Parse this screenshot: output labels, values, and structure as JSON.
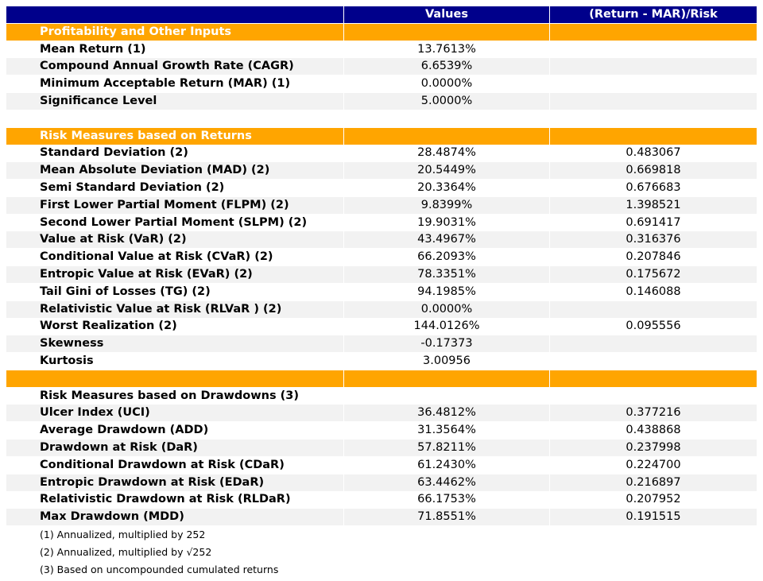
{
  "table": {
    "header": [
      "Values",
      "(Return - MAR)/Risk"
    ],
    "sections": [
      {
        "title": "Profitability and Other Inputs",
        "style": "band",
        "rows": [
          [
            "Mean Return (1)",
            "13.7613%"
          ],
          [
            "Compound Annual Growth Rate (CAGR)",
            "6.6539%"
          ],
          [
            "Minimum Acceptable Return (MAR) (1)",
            "0.0000%"
          ],
          [
            "Significance Level",
            "5.0000%"
          ]
        ]
      },
      {
        "title": "Risk Measures based on Returns",
        "style": "band",
        "rows": [
          [
            "Standard Deviation (2)",
            "28.4874%",
            "0.483067"
          ],
          [
            "Mean Absolute Deviation (MAD) (2)",
            "20.5449%",
            "0.669818"
          ],
          [
            "Semi Standard Deviation (2)",
            "20.3364%",
            "0.676683"
          ],
          [
            "First Lower Partial Moment (FLPM) (2)",
            "9.8399%",
            "1.398521"
          ],
          [
            "Second Lower Partial Moment (SLPM) (2)",
            "19.9031%",
            "0.691417"
          ],
          [
            "Value at Risk (VaR) (2)",
            "43.4967%",
            "0.316376"
          ],
          [
            "Conditional Value at Risk (CVaR) (2)",
            "66.2093%",
            "0.207846"
          ],
          [
            "Entropic Value at Risk (EVaR) (2)",
            "78.3351%",
            "0.175672"
          ],
          [
            "Tail Gini of Losses (TG) (2)",
            "94.1985%",
            "0.146088"
          ],
          [
            "Relativistic Value at Risk (RLVaR ) (2)",
            "0.0000%"
          ],
          [
            "Worst Realization (2)",
            "144.0126%",
            "0.095556"
          ],
          [
            "Skewness",
            "-0.17373"
          ],
          [
            "Kurtosis",
            "3.00956"
          ]
        ]
      },
      {
        "title": "Risk Measures based on Drawdowns (3)",
        "style": "plain",
        "rows": [
          [
            "Ulcer Index (UCI)",
            "36.4812%",
            "0.377216"
          ],
          [
            "Average Drawdown (ADD)",
            "31.3564%",
            "0.438868"
          ],
          [
            "Drawdown at Risk (DaR)",
            "57.8211%",
            "0.237998"
          ],
          [
            "Conditional Drawdown at Risk (CDaR)",
            "61.2430%",
            "0.224700"
          ],
          [
            "Entropic Drawdown at Risk (EDaR)",
            "63.4462%",
            "0.216897"
          ],
          [
            "Relativistic Drawdown at Risk (RLDaR)",
            "66.1753%",
            "0.207952"
          ],
          [
            "Max Drawdown (MDD)",
            "71.8551%",
            "0.191515"
          ]
        ]
      }
    ],
    "notes": [
      "(1) Annualized, multiplied by 252",
      "(2) Annualized, multiplied by √252",
      "(3) Based on uncompounded cumulated returns"
    ]
  }
}
